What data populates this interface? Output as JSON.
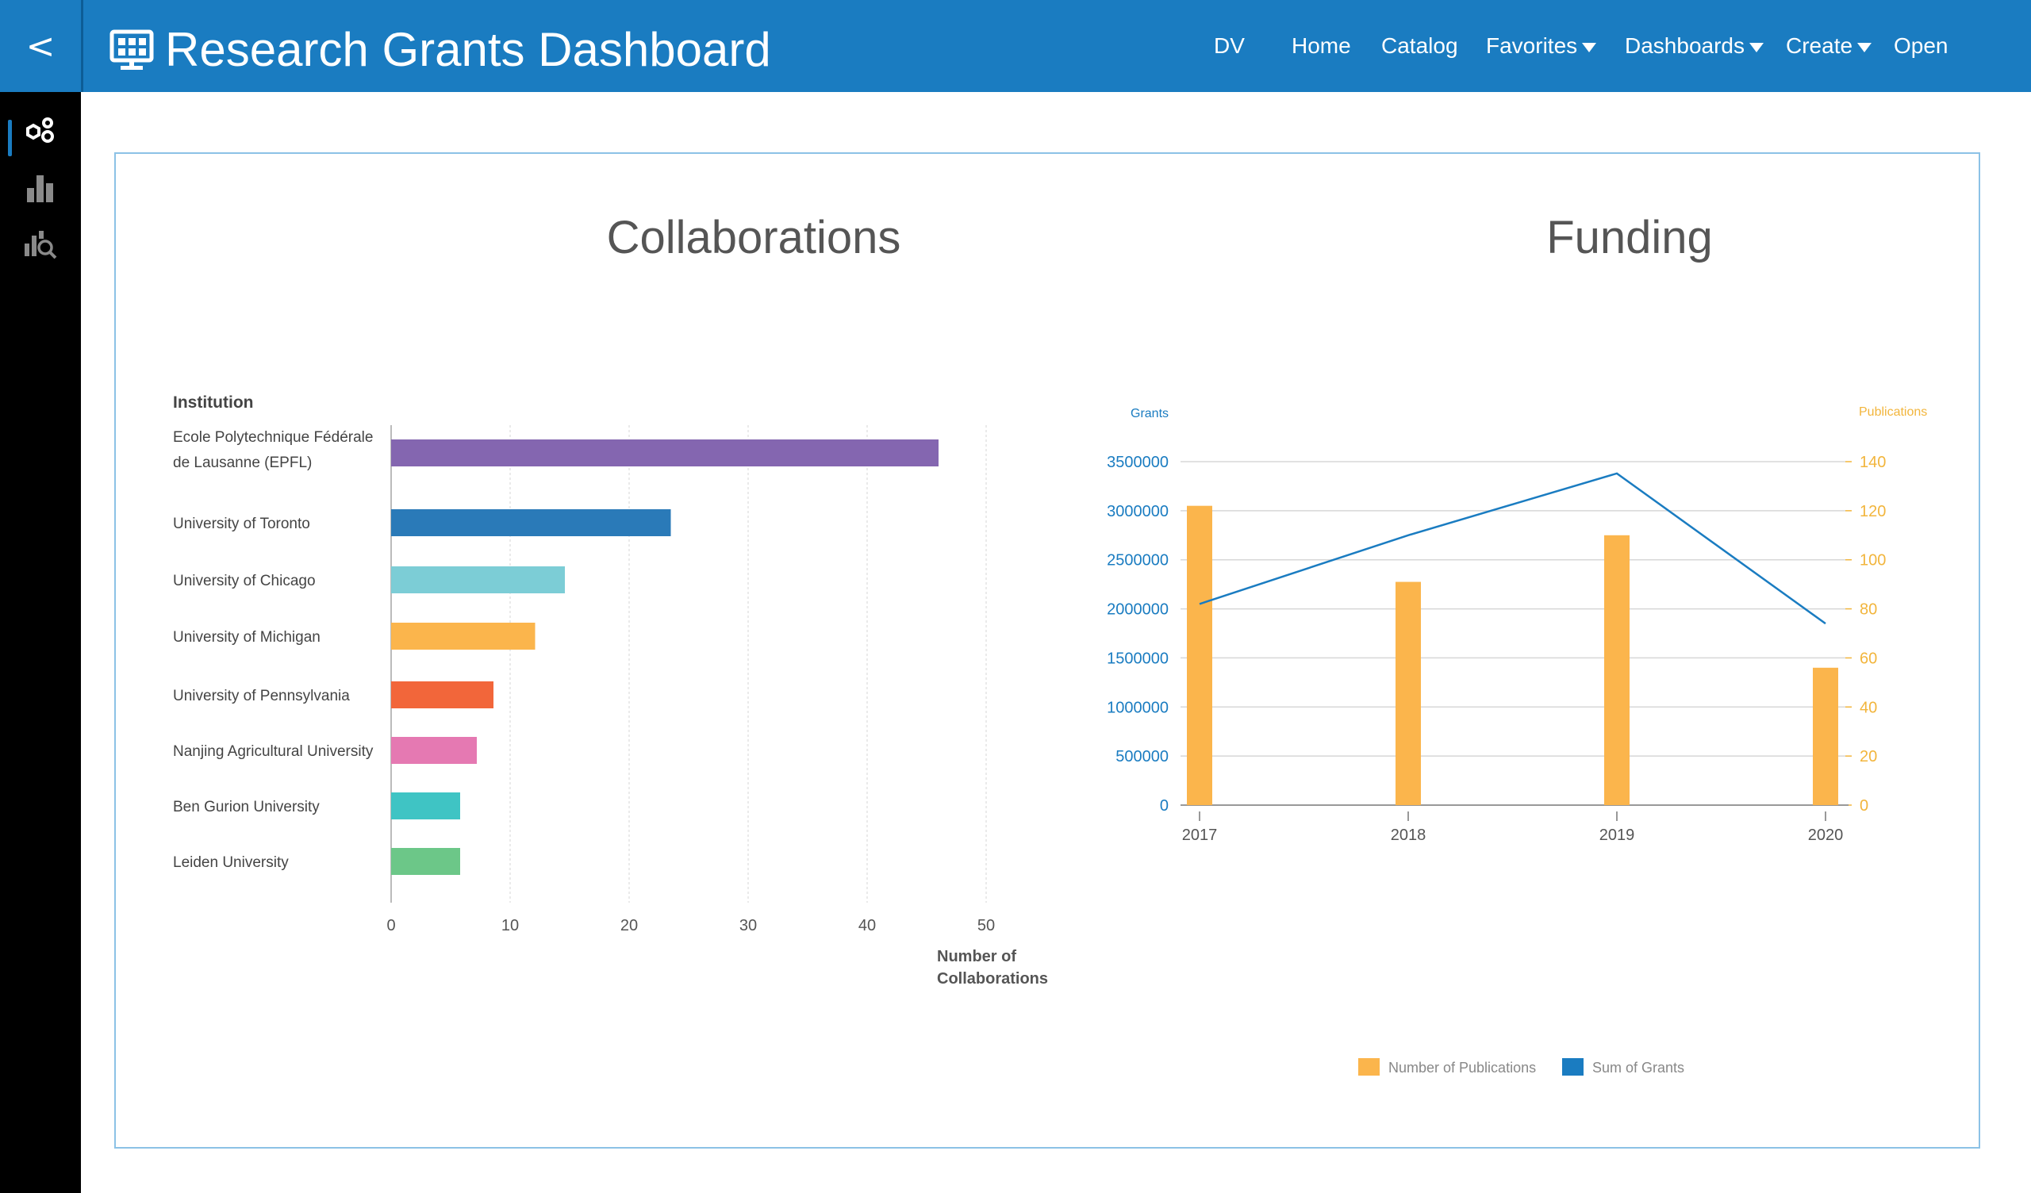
{
  "header": {
    "back_label": "<",
    "title": "Research Grants Dashboard",
    "nav": [
      {
        "label": "DV",
        "dropdown": false
      },
      {
        "label": "Home",
        "dropdown": false
      },
      {
        "label": "Catalog",
        "dropdown": false
      },
      {
        "label": "Favorites",
        "dropdown": true
      },
      {
        "label": "Dashboards",
        "dropdown": true
      },
      {
        "label": "Create",
        "dropdown": true
      },
      {
        "label": "Open",
        "dropdown": false
      }
    ]
  },
  "sidebar": {
    "items": [
      {
        "icon": "visualize-icon",
        "active": true
      },
      {
        "icon": "bar-chart-icon",
        "active": false
      },
      {
        "icon": "chart-search-icon",
        "active": false
      }
    ]
  },
  "colors": {
    "brand": "#1a7cc1",
    "sidebar_bg": "#000000",
    "grants_axis": "#1a7cc1",
    "publications_axis": "#f2b53c",
    "panel_border": "#8cc2e6"
  },
  "chart_data": [
    {
      "type": "bar",
      "orientation": "horizontal",
      "title": "Collaborations",
      "category_header": "Institution",
      "xlabel": "Number of Collaborations",
      "xlim": [
        0,
        50
      ],
      "xticks": [
        0,
        10,
        20,
        30,
        40,
        50
      ],
      "grid": true,
      "categories": [
        "Ecole Polytechnique Fédérale de Lausanne (EPFL)",
        "University of Toronto",
        "University of Chicago",
        "University of Michigan",
        "University of Pennsylvania",
        "Nanjing Agricultural University",
        "Ben Gurion University",
        "Leiden University"
      ],
      "values": [
        46,
        23.5,
        14.6,
        12.1,
        8.6,
        7.2,
        5.8,
        5.8
      ],
      "bar_colors": [
        "#8466b0",
        "#2a7ab8",
        "#7ccdd6",
        "#fbb54c",
        "#f2663a",
        "#e579b2",
        "#3fc4c4",
        "#6cc788"
      ]
    },
    {
      "type": "bar+line",
      "title": "Funding",
      "categories": [
        "2017",
        "2018",
        "2019",
        "2020"
      ],
      "left_axis": {
        "label": "Grants",
        "lim": [
          0,
          3500000
        ],
        "ticks": [
          0,
          500000,
          1000000,
          1500000,
          2000000,
          2500000,
          3000000,
          3500000
        ]
      },
      "right_axis": {
        "label": "Publications",
        "lim": [
          0,
          140
        ],
        "ticks": [
          0,
          20,
          40,
          60,
          80,
          100,
          120,
          140
        ]
      },
      "grid": true,
      "legend_position": "bottom",
      "series": [
        {
          "name": "Number of Publications",
          "type": "bar",
          "axis": "right",
          "color": "#fbb54c",
          "values": [
            122,
            91,
            110,
            56
          ]
        },
        {
          "name": "Sum of Grants",
          "type": "line",
          "axis": "left",
          "color": "#1a7cc1",
          "values": [
            2050000,
            2750000,
            3380000,
            1850000
          ]
        }
      ]
    }
  ]
}
